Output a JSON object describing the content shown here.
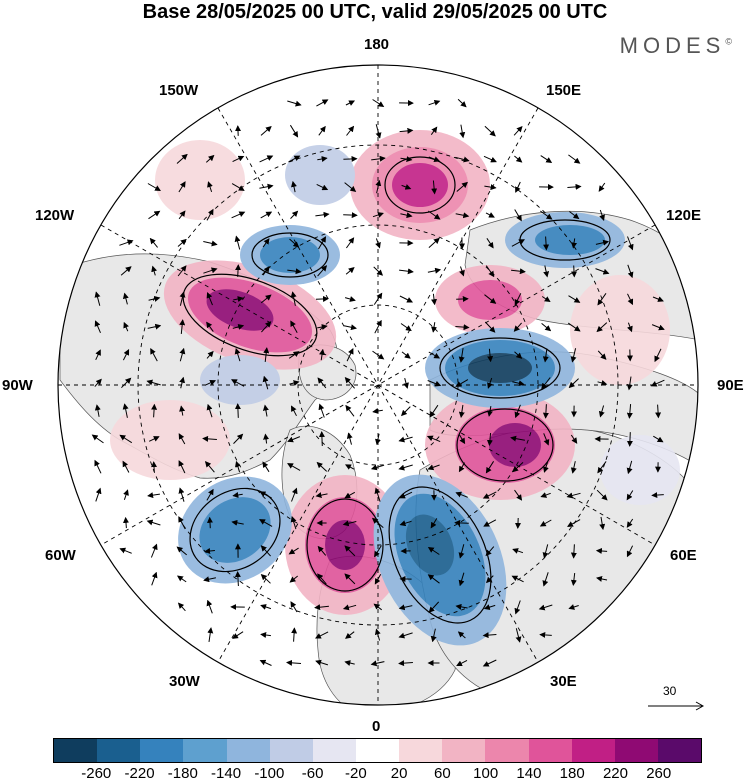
{
  "title": "Base 28/05/2025 00 UTC, valid 29/05/2025 00 UTC",
  "logo": "MODES",
  "logo_mark": "©",
  "longitude_labels": {
    "n180": "180",
    "n150E": "150E",
    "n120E": "120E",
    "n90E": "90E",
    "n60E": "60E",
    "n30E": "30E",
    "n0": "0",
    "n30W": "30W",
    "n60W": "60W",
    "n90W": "90W",
    "n120W": "120W",
    "n150W": "150W"
  },
  "reference_vector": "30",
  "colorbar": {
    "colors": [
      "#0f3d5e",
      "#1a5f8f",
      "#3582bd",
      "#5ea0cf",
      "#8fb5dd",
      "#c0cce6",
      "#e6e6f2",
      "#ffffff",
      "#f7d8dc",
      "#f2b4c4",
      "#ec86ac",
      "#e0549a",
      "#c11f85",
      "#8f0a73",
      "#5a0a6a"
    ],
    "ticks": [
      "-260",
      "-220",
      "-180",
      "-140",
      "-100",
      "-60",
      "-20",
      "20",
      "60",
      "100",
      "140",
      "180",
      "220",
      "260"
    ]
  },
  "colors": {
    "land": "#e8e8e8",
    "ocean": "#ffffff",
    "neg_strong": "#1a5f8f",
    "pos_strong": "#c11f85"
  }
}
